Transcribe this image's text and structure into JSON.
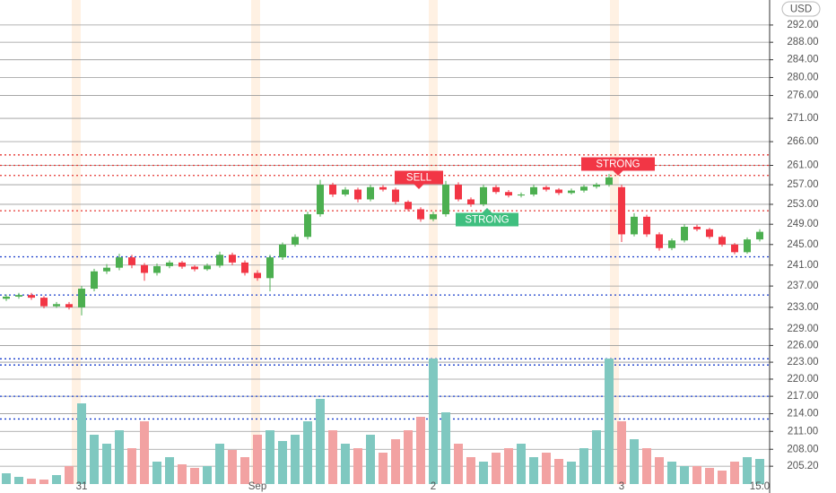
{
  "chart_data": {
    "type": "candlestick",
    "currency": "USD",
    "log_scale": true,
    "grid": true,
    "up_color": "#4caf50",
    "down_color": "#f23645",
    "volume_up_color": "#7fc8c0",
    "volume_down_color": "#f2a2a2",
    "categories": [
      null,
      null,
      null,
      null,
      null,
      null,
      "31",
      null,
      null,
      null,
      null,
      null,
      null,
      null,
      null,
      null,
      null,
      null,
      null,
      null,
      "Sep",
      null,
      null,
      null,
      null,
      null,
      null,
      null,
      null,
      null,
      null,
      null,
      null,
      null,
      "2",
      null,
      null,
      null,
      null,
      null,
      null,
      null,
      null,
      null,
      null,
      null,
      null,
      null,
      null,
      "3",
      null,
      null,
      null,
      null,
      null,
      null,
      null,
      null,
      null,
      null,
      "15:0"
    ],
    "open": [
      234.6,
      235.0,
      235.3,
      234.8,
      233.2,
      233.6,
      233.0,
      236.5,
      239.8,
      240.5,
      242.5,
      241.0,
      239.5,
      240.8,
      241.5,
      240.7,
      240.2,
      240.9,
      243.0,
      241.5,
      239.5,
      238.5,
      242.5,
      245.0,
      246.5,
      251.0,
      257.0,
      255.0,
      256.0,
      254.0,
      256.5,
      256.0,
      253.5,
      252.0,
      250.0,
      251.0,
      257.0,
      254.0,
      253.0,
      256.5,
      255.5,
      254.8,
      255.0,
      256.5,
      256.0,
      255.3,
      255.8,
      256.6,
      257.0,
      256.5,
      247.0,
      250.5,
      247.0,
      244.3,
      245.8,
      248.5,
      248.0,
      246.5,
      245.0,
      243.5,
      246.0
    ],
    "high": [
      235.4,
      235.7,
      235.7,
      235.1,
      234.0,
      234.0,
      237.0,
      240.3,
      241.2,
      243.2,
      243.0,
      241.4,
      241.3,
      241.9,
      241.8,
      241.0,
      241.3,
      243.6,
      243.4,
      241.9,
      240.0,
      243.0,
      245.4,
      247.0,
      251.5,
      258.0,
      257.4,
      256.5,
      256.4,
      257.0,
      256.9,
      256.4,
      253.8,
      252.4,
      251.5,
      257.8,
      257.5,
      254.4,
      257.0,
      256.9,
      255.9,
      255.4,
      257.0,
      256.8,
      256.3,
      256.2,
      257.0,
      257.4,
      259.2,
      257.0,
      251.2,
      250.9,
      247.4,
      246.2,
      249.0,
      248.9,
      248.3,
      246.8,
      245.3,
      246.4,
      248.0
    ],
    "low": [
      234.2,
      234.6,
      234.4,
      232.8,
      232.9,
      232.6,
      231.5,
      236.0,
      239.3,
      240.0,
      240.4,
      238.0,
      239.0,
      240.4,
      240.3,
      239.8,
      239.9,
      240.5,
      241.0,
      239.0,
      238.0,
      236.0,
      242.0,
      244.6,
      246.0,
      250.5,
      254.5,
      254.6,
      253.4,
      253.6,
      255.6,
      253.0,
      251.6,
      249.5,
      249.6,
      250.5,
      253.6,
      252.5,
      252.6,
      255.1,
      254.4,
      254.4,
      254.6,
      255.6,
      254.9,
      255.0,
      255.4,
      256.2,
      256.6,
      245.5,
      246.6,
      246.5,
      243.8,
      243.9,
      245.4,
      247.6,
      246.1,
      244.6,
      243.1,
      243.2,
      245.6
    ],
    "close": [
      235.0,
      235.3,
      234.8,
      233.2,
      233.6,
      233.0,
      236.5,
      239.8,
      240.5,
      242.5,
      241.0,
      239.5,
      240.8,
      241.5,
      240.7,
      240.2,
      240.9,
      243.0,
      241.5,
      239.5,
      238.5,
      242.5,
      245.0,
      246.5,
      251.0,
      257.0,
      255.0,
      256.0,
      254.0,
      256.5,
      256.0,
      253.5,
      252.0,
      250.0,
      251.0,
      257.0,
      254.0,
      253.0,
      256.5,
      255.5,
      254.8,
      255.0,
      256.5,
      256.0,
      255.3,
      255.8,
      256.6,
      257.0,
      258.5,
      247.0,
      250.5,
      247.0,
      244.3,
      245.8,
      248.5,
      248.0,
      246.5,
      245.0,
      243.5,
      246.0,
      247.5
    ],
    "volume": [
      12,
      8,
      6,
      5,
      10,
      20,
      90,
      55,
      45,
      60,
      40,
      70,
      25,
      30,
      22,
      18,
      20,
      45,
      38,
      30,
      55,
      60,
      48,
      55,
      70,
      95,
      60,
      45,
      40,
      55,
      35,
      50,
      60,
      75,
      140,
      80,
      45,
      30,
      25,
      35,
      40,
      45,
      30,
      35,
      28,
      25,
      40,
      60,
      140,
      70,
      50,
      40,
      30,
      25,
      20,
      20,
      18,
      15,
      25,
      30,
      28
    ],
    "ylim": [
      202.3,
      297.9
    ],
    "yticks": [
      {
        "value": 292,
        "label": "292.00"
      },
      {
        "value": 288,
        "label": "288.00"
      },
      {
        "value": 284,
        "label": "284.00"
      },
      {
        "value": 280,
        "label": "280.00"
      },
      {
        "value": 276,
        "label": "276.00"
      },
      {
        "value": 271,
        "label": "271.00"
      },
      {
        "value": 266,
        "label": "266.00"
      },
      {
        "value": 261,
        "label": "261.00"
      },
      {
        "value": 257,
        "label": "257.00"
      },
      {
        "value": 253,
        "label": "253.00"
      },
      {
        "value": 249,
        "label": "249.00"
      },
      {
        "value": 245,
        "label": "245.00"
      },
      {
        "value": 241,
        "label": "241.00"
      },
      {
        "value": 237,
        "label": "237.00"
      },
      {
        "value": 233,
        "label": "233.00"
      },
      {
        "value": 229,
        "label": "229.00"
      },
      {
        "value": 226,
        "label": "226.00"
      },
      {
        "value": 223,
        "label": "223.00"
      },
      {
        "value": 220,
        "label": "220.00"
      },
      {
        "value": 217,
        "label": "217.00"
      },
      {
        "value": 214,
        "label": "214.00"
      },
      {
        "value": 211,
        "label": "211.00"
      },
      {
        "value": 208,
        "label": "208.00"
      },
      {
        "value": 205.2,
        "label": "205.20"
      }
    ],
    "levels": [
      {
        "value": 263.2,
        "color": "#e53935"
      },
      {
        "value": 261.0,
        "color": "#e53935"
      },
      {
        "value": 258.9,
        "color": "#e53935"
      },
      {
        "value": 251.7,
        "color": "#e53935"
      },
      {
        "value": 242.6,
        "color": "#1a3fcc"
      },
      {
        "value": 235.3,
        "color": "#1a3fcc"
      },
      {
        "value": 223.6,
        "color": "#1a3fcc"
      },
      {
        "value": 222.5,
        "color": "#1a3fcc"
      },
      {
        "value": 217.0,
        "color": "#1a3fcc"
      },
      {
        "value": 213.1,
        "color": "#1a3fcc"
      }
    ],
    "annotations": [
      {
        "text": "SELL",
        "color": "#f23645"
      },
      {
        "text": "STRONG",
        "color": "#3fbf7f"
      },
      {
        "text": "STRONG",
        "color": "#f23645"
      }
    ]
  }
}
